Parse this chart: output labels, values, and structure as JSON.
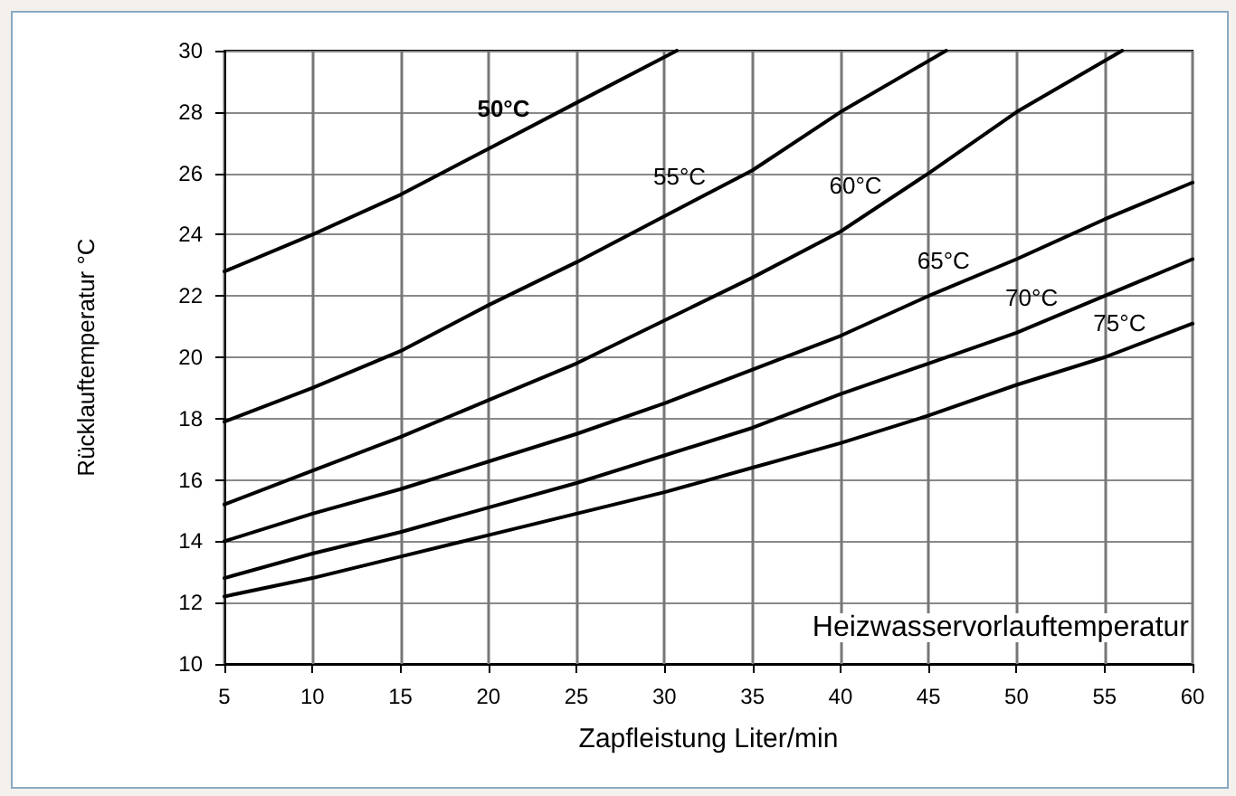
{
  "chart_data": {
    "type": "line",
    "xlabel": "Zapfleistung Liter/min",
    "ylabel": "Rücklauftemperatur °C",
    "annotations": [
      "Heizwasservorlauftemperatur"
    ],
    "xlim": [
      5,
      60
    ],
    "xticks": [
      5,
      10,
      15,
      20,
      25,
      30,
      35,
      40,
      45,
      50,
      55,
      60
    ],
    "ylim": [
      10,
      30
    ],
    "yticks": [
      10,
      12,
      14,
      16,
      18,
      20,
      22,
      24,
      26,
      28,
      30
    ],
    "grid": true,
    "legend": false,
    "marker": "none",
    "line_style": "solid",
    "series": [
      {
        "name": "50°C",
        "color": "#000000",
        "x": [
          5,
          10,
          15,
          20,
          25,
          30.7
        ],
        "values": [
          22.8,
          24.0,
          25.3,
          26.8,
          28.3,
          30
        ]
      },
      {
        "name": "55°C",
        "color": "#000000",
        "x": [
          5,
          10,
          15,
          20,
          25,
          30,
          35,
          40,
          46
        ],
        "values": [
          17.9,
          19.0,
          20.2,
          21.7,
          23.1,
          24.6,
          26.1,
          28.0,
          30
        ]
      },
      {
        "name": "60°C",
        "color": "#000000",
        "x": [
          5,
          10,
          15,
          20,
          25,
          30,
          35,
          40,
          45,
          50,
          56
        ],
        "values": [
          15.2,
          16.3,
          17.4,
          18.6,
          19.8,
          21.2,
          22.6,
          24.1,
          26.0,
          28.0,
          30
        ]
      },
      {
        "name": "65°C",
        "color": "#000000",
        "x": [
          5,
          10,
          15,
          20,
          25,
          30,
          35,
          40,
          45,
          50,
          55,
          60
        ],
        "values": [
          14.0,
          14.9,
          15.7,
          16.6,
          17.5,
          18.5,
          19.6,
          20.7,
          22.0,
          23.2,
          24.5,
          25.7
        ]
      },
      {
        "name": "70°C",
        "color": "#000000",
        "x": [
          5,
          10,
          15,
          20,
          25,
          30,
          35,
          40,
          45,
          50,
          55,
          60
        ],
        "values": [
          12.8,
          13.6,
          14.3,
          15.1,
          15.9,
          16.8,
          17.7,
          18.8,
          19.8,
          20.8,
          22.0,
          23.2
        ]
      },
      {
        "name": "75°C",
        "color": "#000000",
        "x": [
          5,
          10,
          15,
          20,
          25,
          30,
          35,
          40,
          45,
          50,
          55,
          60
        ],
        "values": [
          12.2,
          12.8,
          13.5,
          14.2,
          14.9,
          15.6,
          16.4,
          17.2,
          18.1,
          19.1,
          20.0,
          21.1
        ]
      }
    ]
  }
}
